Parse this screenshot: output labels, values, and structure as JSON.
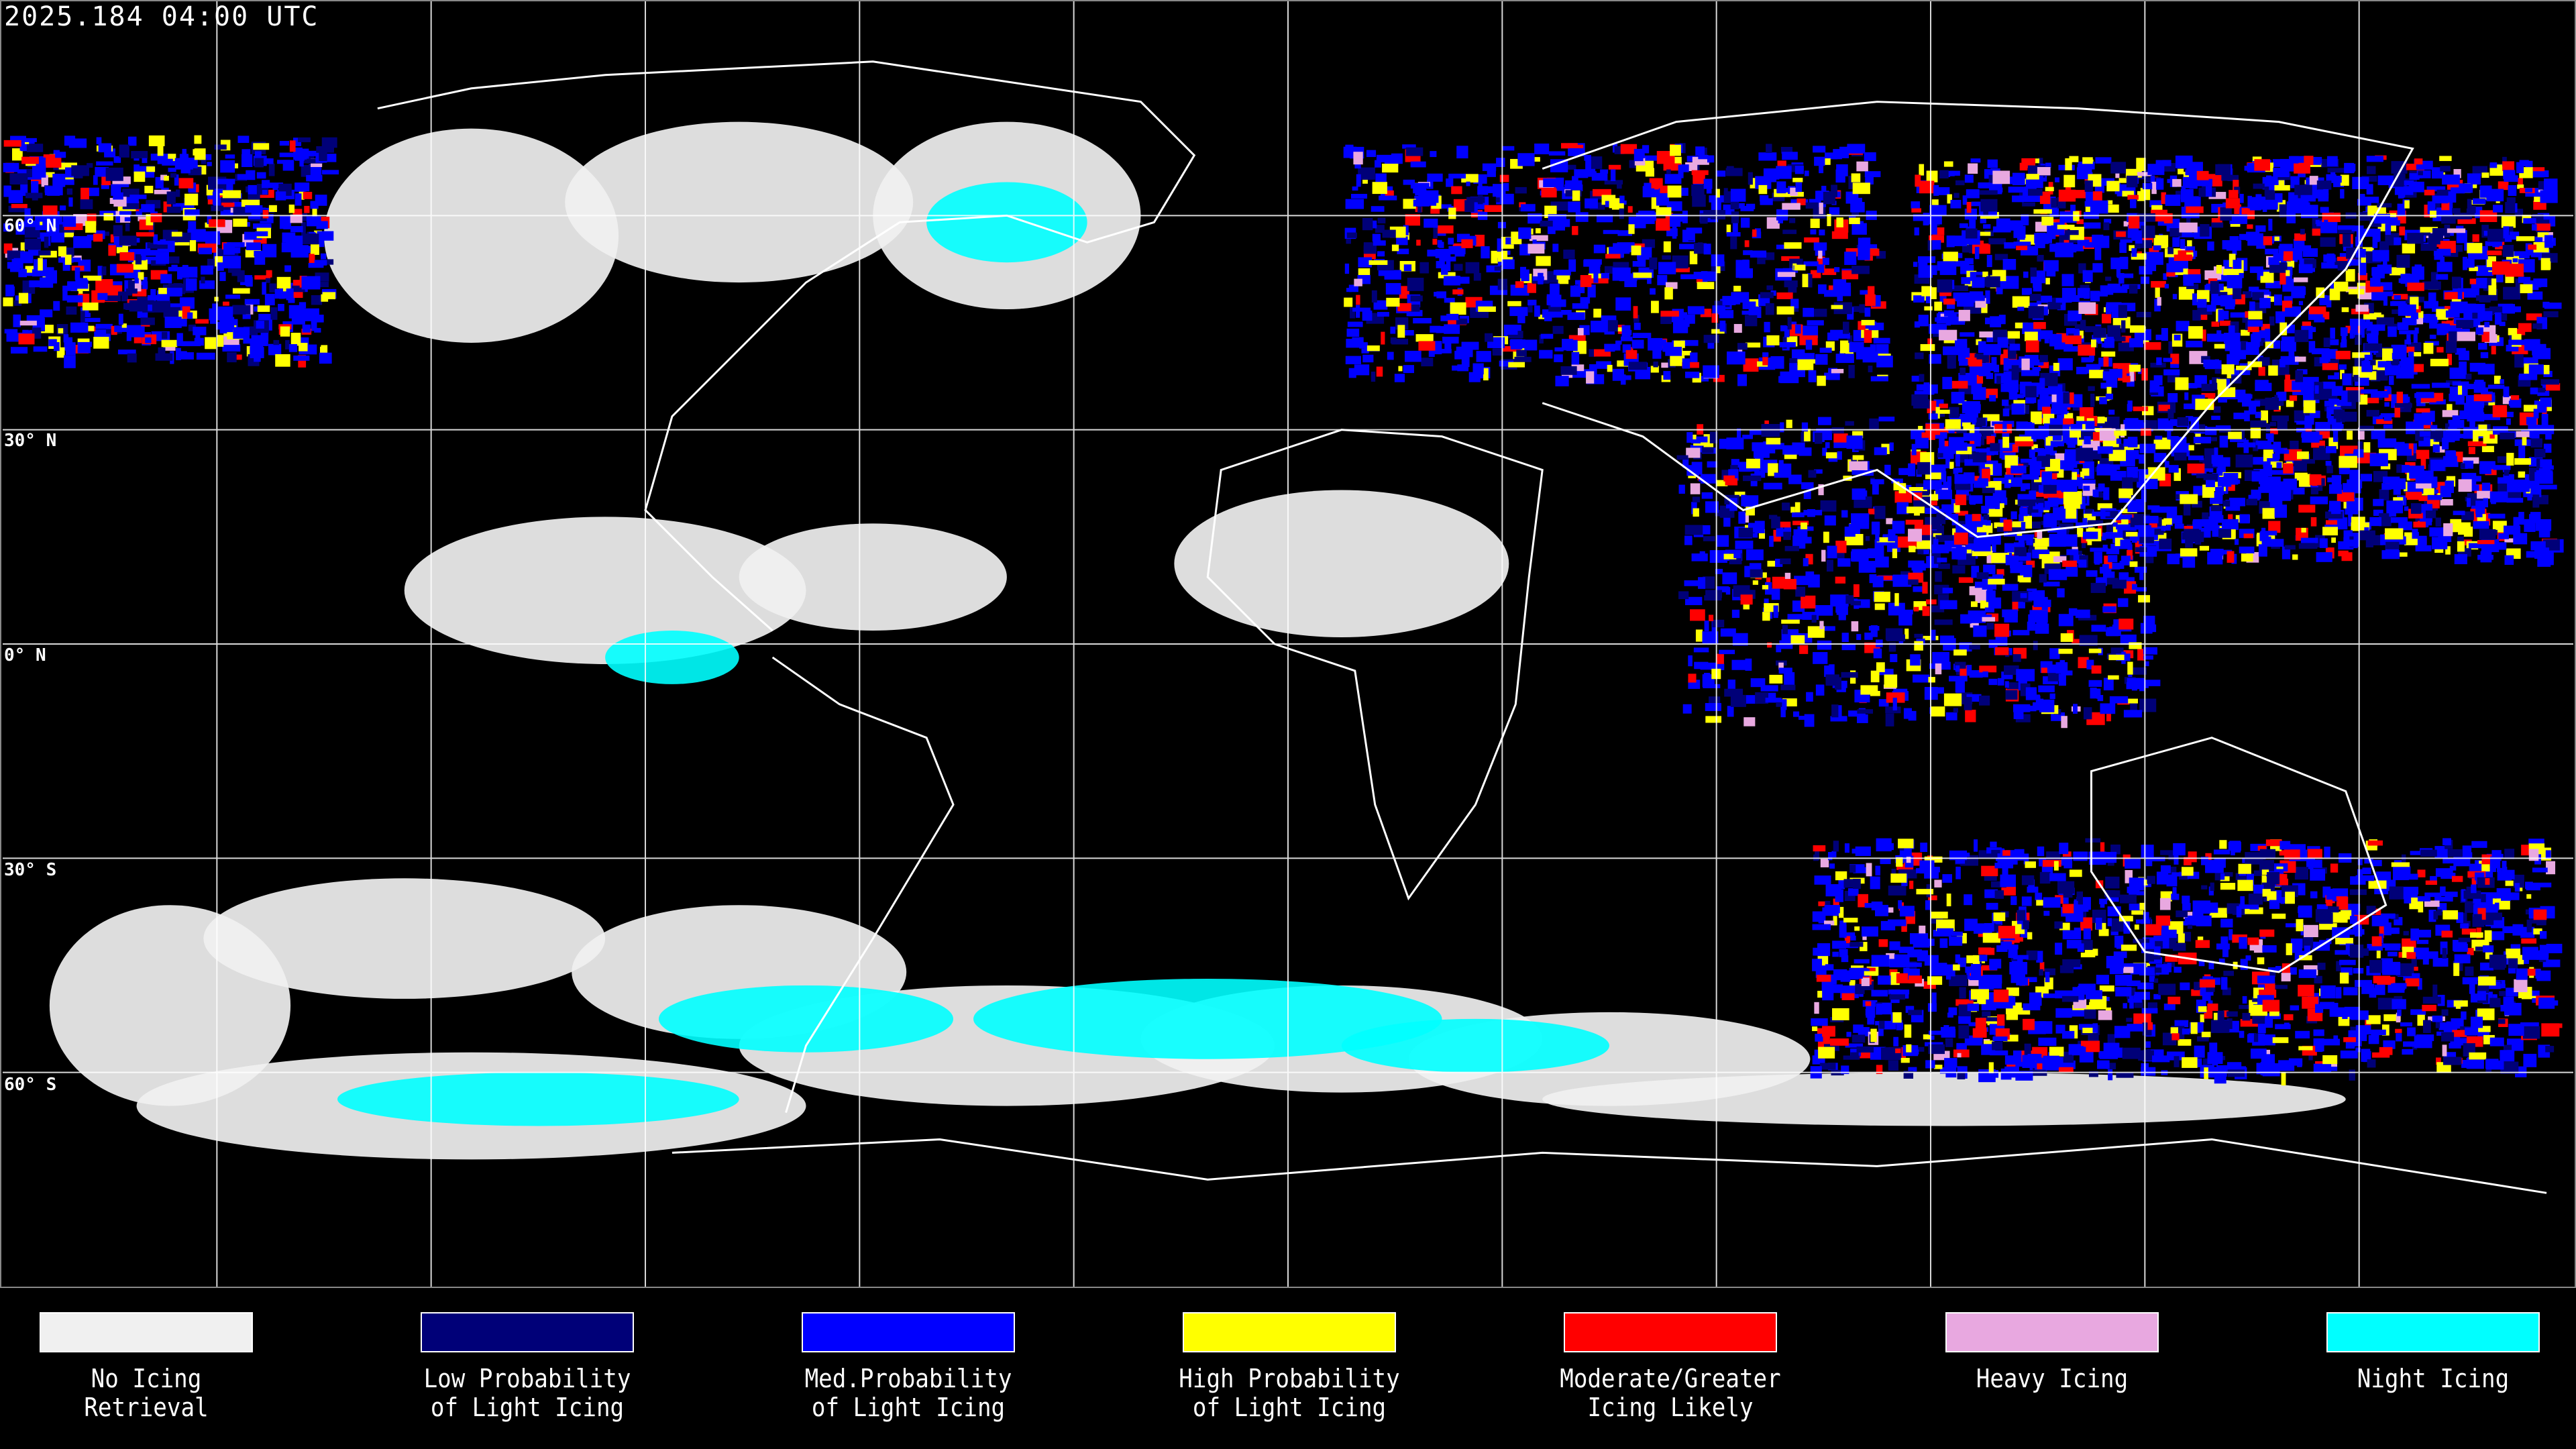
{
  "header": {
    "timestamp": "2025.184 04:00 UTC"
  },
  "map": {
    "latitude_labels": [
      "60° N",
      "30° N",
      "0° N",
      "30° S",
      "60° S"
    ],
    "background": "#000000",
    "gridline_color": "#ffffff",
    "coastline_color": "#ffffff"
  },
  "legend": {
    "items": [
      {
        "line1": "No Icing",
        "line2": "Retrieval",
        "color": "#f0f0f0"
      },
      {
        "line1": "Low Probability",
        "line2": "of Light Icing",
        "color": "#000078"
      },
      {
        "line1": "Med.Probability",
        "line2": "of Light Icing",
        "color": "#0000ff"
      },
      {
        "line1": "High Probability",
        "line2": "of Light Icing",
        "color": "#ffff00"
      },
      {
        "line1": "Moderate/Greater",
        "line2": "Icing Likely",
        "color": "#ff0000"
      },
      {
        "line1": "Heavy Icing",
        "line2": "",
        "color": "#e8a8e0"
      },
      {
        "line1": "Night Icing",
        "line2": "",
        "color": "#00ffff"
      }
    ]
  }
}
